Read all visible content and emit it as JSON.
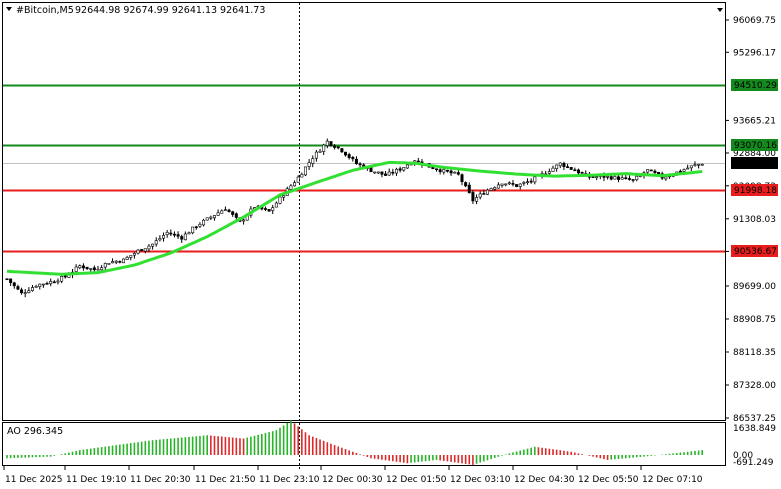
{
  "header": {
    "symbol_timeframe": "#Bitcoin,M5",
    "ohlc": "92644.98 92674.99 92641.13 92641.73"
  },
  "indicator": {
    "label": "AO 296.345"
  },
  "colors": {
    "background": "#ffffff",
    "candle": "#000000",
    "ma_line": "#32e032",
    "support_resistance_red": "#e81e1e",
    "level_green": "#14891e",
    "ao_up": "#28b428",
    "ao_down": "#dc2828",
    "price_tag_bg": "#000000",
    "price_tag_text": "#ffffff"
  },
  "chart_data": {
    "type": "candlestick",
    "title": "#Bitcoin,M5",
    "price_axis_ticks": [
      "96069.75",
      "95296.17",
      "93665.21",
      "92884.00",
      "92098.72",
      "91308.03",
      "90526.67",
      "89699.00",
      "88908.75",
      "88118.35",
      "87328.00",
      "86537.25"
    ],
    "time_axis_ticks": [
      "11 Dec 2025",
      "11 Dec 19:10",
      "11 Dec 20:30",
      "11 Dec 21:50",
      "11 Dec 23:10",
      "12 Dec 00:30",
      "12 Dec 01:50",
      "12 Dec 03:10",
      "12 Dec 04:30",
      "12 Dec 05:50",
      "12 Dec 07:10"
    ],
    "ylim": [
      86537.25,
      96069.75
    ],
    "levels": [
      {
        "price": 94510.29,
        "label": "94510.29",
        "color": "#14891e"
      },
      {
        "price": 93070.16,
        "label": "93070.16",
        "color": "#14891e"
      },
      {
        "price": 91998.18,
        "label": "91998.18",
        "color": "#e81e1e"
      },
      {
        "price": 90536.67,
        "label": "90536.67",
        "color": "#e81e1e"
      }
    ],
    "current_price": {
      "price": 92641.73,
      "label": "92641.73"
    },
    "close_anchors": [
      [
        0,
        89870
      ],
      [
        4,
        89520
      ],
      [
        8,
        89720
      ],
      [
        12,
        89800
      ],
      [
        16,
        89920
      ],
      [
        20,
        90180
      ],
      [
        24,
        90090
      ],
      [
        28,
        90270
      ],
      [
        32,
        90320
      ],
      [
        36,
        90540
      ],
      [
        40,
        90700
      ],
      [
        44,
        90980
      ],
      [
        48,
        90860
      ],
      [
        52,
        91140
      ],
      [
        56,
        91350
      ],
      [
        60,
        91560
      ],
      [
        64,
        91220
      ],
      [
        68,
        91600
      ],
      [
        72,
        91480
      ],
      [
        76,
        91900
      ],
      [
        80,
        92300
      ],
      [
        84,
        92780
      ],
      [
        88,
        93160
      ],
      [
        92,
        92950
      ],
      [
        96,
        92630
      ],
      [
        100,
        92470
      ],
      [
        104,
        92350
      ],
      [
        108,
        92500
      ],
      [
        112,
        92720
      ],
      [
        116,
        92560
      ],
      [
        120,
        92450
      ],
      [
        124,
        92360
      ],
      [
        128,
        91750
      ],
      [
        132,
        92000
      ],
      [
        136,
        92180
      ],
      [
        140,
        92100
      ],
      [
        144,
        92220
      ],
      [
        148,
        92420
      ],
      [
        152,
        92630
      ],
      [
        156,
        92470
      ],
      [
        160,
        92310
      ],
      [
        164,
        92320
      ],
      [
        168,
        92280
      ],
      [
        172,
        92230
      ],
      [
        176,
        92470
      ],
      [
        180,
        92300
      ],
      [
        184,
        92420
      ],
      [
        188,
        92560
      ],
      [
        191,
        92640
      ]
    ],
    "ma_anchors": [
      [
        0,
        90050
      ],
      [
        15,
        89980
      ],
      [
        25,
        90020
      ],
      [
        35,
        90200
      ],
      [
        45,
        90490
      ],
      [
        55,
        90880
      ],
      [
        65,
        91350
      ],
      [
        75,
        91880
      ],
      [
        85,
        92180
      ],
      [
        95,
        92470
      ],
      [
        105,
        92660
      ],
      [
        112,
        92640
      ],
      [
        120,
        92540
      ],
      [
        130,
        92450
      ],
      [
        140,
        92380
      ],
      [
        150,
        92330
      ],
      [
        160,
        92350
      ],
      [
        170,
        92390
      ],
      [
        180,
        92340
      ],
      [
        191,
        92440
      ]
    ],
    "ao_anchors": [
      [
        0,
        -200
      ],
      [
        12,
        -100
      ],
      [
        20,
        300
      ],
      [
        40,
        900
      ],
      [
        55,
        1200
      ],
      [
        65,
        1000
      ],
      [
        74,
        1500
      ],
      [
        78,
        2100
      ],
      [
        83,
        1200
      ],
      [
        90,
        600
      ],
      [
        100,
        -200
      ],
      [
        110,
        -500
      ],
      [
        118,
        -300
      ],
      [
        128,
        -600
      ],
      [
        138,
        100
      ],
      [
        145,
        500
      ],
      [
        155,
        200
      ],
      [
        165,
        -300
      ],
      [
        175,
        -100
      ],
      [
        191,
        296
      ]
    ],
    "ao_ticks": [
      "1638.849",
      "0.00",
      "-691.249"
    ]
  }
}
